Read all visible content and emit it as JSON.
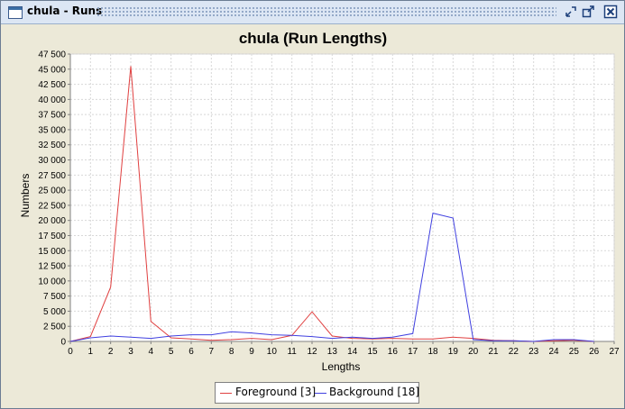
{
  "window": {
    "title": "chula - Runs"
  },
  "titlebar_buttons": [
    {
      "icon": "minimize-restore-icon"
    },
    {
      "icon": "maximize-icon"
    },
    {
      "icon": "close-icon"
    }
  ],
  "colors": {
    "foreground": "#E04040",
    "background": "#4040E0"
  },
  "chart_data": {
    "type": "line",
    "title": "chula (Run Lengths)",
    "xlabel": "Lengths",
    "ylabel": "Numbers",
    "xlim": [
      0,
      27
    ],
    "ylim": [
      0,
      47500
    ],
    "x_ticks": [
      "0",
      "1",
      "2",
      "3",
      "4",
      "5",
      "6",
      "7",
      "8",
      "9",
      "10",
      "11",
      "12",
      "13",
      "14",
      "15",
      "16",
      "17",
      "18",
      "19",
      "20",
      "21",
      "22",
      "23",
      "24",
      "25",
      "26",
      "27"
    ],
    "y_ticks": [
      "0",
      "2 500",
      "5 000",
      "7 500",
      "10 000",
      "12 500",
      "15 000",
      "17 500",
      "20 000",
      "22 500",
      "25 000",
      "27 500",
      "30 000",
      "32 500",
      "35 000",
      "37 500",
      "40 000",
      "42 500",
      "45 000",
      "47 500"
    ],
    "y_tick_values": [
      0,
      2500,
      5000,
      7500,
      10000,
      12500,
      15000,
      17500,
      20000,
      22500,
      25000,
      27500,
      30000,
      32500,
      35000,
      37500,
      40000,
      42500,
      45000,
      47500
    ],
    "grid": true,
    "legend_position": "bottom",
    "series": [
      {
        "name": "Foreground [3]",
        "x": [
          0,
          1,
          2,
          3,
          4,
          5,
          6,
          7,
          8,
          9,
          10,
          11,
          12,
          13,
          14,
          15,
          16,
          17,
          18,
          19,
          20,
          21,
          22,
          23,
          24,
          25,
          26
        ],
        "values": [
          0,
          800,
          9000,
          45500,
          3300,
          600,
          400,
          200,
          300,
          500,
          300,
          1000,
          4900,
          900,
          500,
          400,
          500,
          400,
          400,
          700,
          500,
          200,
          100,
          0,
          100,
          200,
          0
        ]
      },
      {
        "name": "Background [18]",
        "x": [
          0,
          1,
          2,
          3,
          4,
          5,
          6,
          7,
          8,
          9,
          10,
          11,
          12,
          13,
          14,
          15,
          16,
          17,
          18,
          19,
          20,
          21,
          22,
          23,
          24,
          25,
          26
        ],
        "values": [
          0,
          600,
          900,
          700,
          500,
          900,
          1100,
          1100,
          1600,
          1400,
          1100,
          1000,
          800,
          500,
          700,
          500,
          700,
          1300,
          21200,
          20400,
          300,
          100,
          100,
          0,
          300,
          300,
          0
        ]
      }
    ]
  }
}
